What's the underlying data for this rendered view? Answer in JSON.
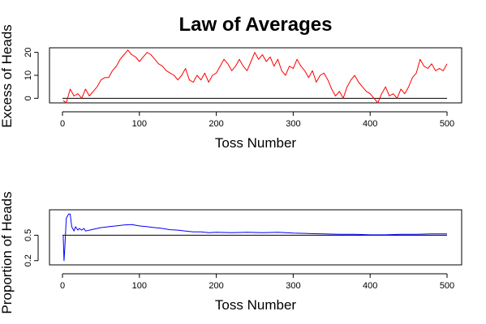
{
  "chart_data": [
    {
      "type": "line",
      "title": "Law of Averages",
      "xlabel": "Toss Number",
      "ylabel": "Excess of Heads",
      "xlim": [
        0,
        500
      ],
      "ylim": [
        -2,
        22
      ],
      "x_ticks": [
        0,
        100,
        200,
        300,
        400,
        500
      ],
      "y_ticks": [
        0,
        10,
        20
      ],
      "x_tick_labels": [
        "0",
        "100",
        "200",
        "300",
        "400",
        "500"
      ],
      "y_tick_labels": [
        "0",
        "10",
        "20"
      ],
      "grid": false,
      "reference_line": {
        "y": 0,
        "color": "#000000"
      },
      "series": [
        {
          "color": "#ff0000",
          "x": [
            1,
            5,
            10,
            15,
            20,
            25,
            30,
            35,
            40,
            45,
            50,
            55,
            60,
            65,
            70,
            75,
            80,
            85,
            90,
            95,
            100,
            105,
            110,
            115,
            120,
            125,
            130,
            135,
            140,
            145,
            150,
            155,
            160,
            165,
            170,
            175,
            180,
            185,
            190,
            195,
            200,
            205,
            210,
            215,
            220,
            225,
            230,
            235,
            240,
            245,
            250,
            255,
            260,
            265,
            270,
            275,
            280,
            285,
            290,
            295,
            300,
            305,
            310,
            315,
            320,
            325,
            330,
            335,
            340,
            345,
            350,
            355,
            360,
            365,
            370,
            375,
            380,
            385,
            390,
            395,
            400,
            405,
            410,
            415,
            420,
            425,
            430,
            435,
            440,
            445,
            450,
            455,
            460,
            465,
            470,
            475,
            480,
            485,
            490,
            495,
            500
          ],
          "values": [
            -1,
            -2,
            4,
            1,
            2,
            0,
            4,
            1,
            3,
            5,
            8,
            9,
            9,
            12,
            14,
            17,
            19,
            21,
            19,
            18,
            16,
            18,
            20,
            19,
            17,
            15,
            14,
            12,
            11,
            10,
            8,
            10,
            13,
            8,
            7,
            10,
            8,
            11,
            7,
            10,
            11,
            14,
            17,
            15,
            12,
            14,
            17,
            14,
            12,
            16,
            20,
            17,
            19,
            16,
            18,
            14,
            17,
            12,
            10,
            14,
            13,
            17,
            14,
            12,
            9,
            12,
            7,
            10,
            11,
            8,
            4,
            1,
            3,
            0,
            5,
            8,
            10,
            7,
            5,
            3,
            2,
            0,
            -2,
            2,
            5,
            1,
            2,
            0,
            4,
            2,
            5,
            9,
            11,
            17,
            14,
            13,
            15,
            12,
            13,
            12,
            15
          ]
        }
      ]
    },
    {
      "type": "line",
      "xlabel": "Toss Number",
      "ylabel": "Proportion of Heads",
      "xlim": [
        0,
        500
      ],
      "ylim": [
        0.15,
        0.8
      ],
      "x_ticks": [
        0,
        100,
        200,
        300,
        400,
        500
      ],
      "y_ticks": [
        0.2,
        0.5
      ],
      "x_tick_labels": [
        "0",
        "100",
        "200",
        "300",
        "400",
        "500"
      ],
      "y_tick_labels": [
        "0.2",
        "0.5"
      ],
      "grid": false,
      "reference_line": {
        "y": 0.5,
        "color": "#000000"
      },
      "series": [
        {
          "color": "#0000ff",
          "x": [
            1,
            2,
            3,
            5,
            8,
            10,
            12,
            15,
            17,
            20,
            22,
            25,
            28,
            30,
            35,
            40,
            45,
            50,
            60,
            70,
            80,
            90,
            100,
            110,
            120,
            130,
            140,
            150,
            160,
            170,
            180,
            190,
            200,
            220,
            240,
            260,
            280,
            300,
            320,
            340,
            360,
            380,
            400,
            420,
            440,
            460,
            480,
            500
          ],
          "values": [
            0.5,
            0.2,
            0.333,
            0.7,
            0.75,
            0.75,
            0.6,
            0.55,
            0.6,
            0.56,
            0.58,
            0.56,
            0.58,
            0.55,
            0.56,
            0.57,
            0.58,
            0.59,
            0.6,
            0.61,
            0.62,
            0.625,
            0.61,
            0.6,
            0.59,
            0.58,
            0.565,
            0.56,
            0.55,
            0.54,
            0.54,
            0.53,
            0.535,
            0.53,
            0.535,
            0.53,
            0.535,
            0.525,
            0.52,
            0.515,
            0.51,
            0.51,
            0.505,
            0.505,
            0.51,
            0.51,
            0.515,
            0.515
          ]
        }
      ]
    }
  ]
}
